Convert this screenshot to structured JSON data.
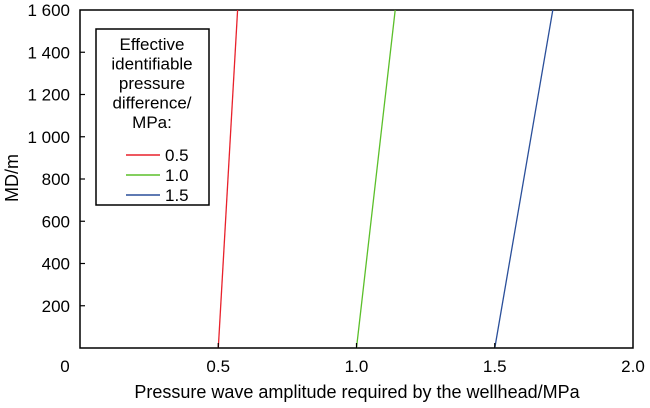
{
  "chart_data": {
    "type": "line",
    "title": "",
    "xlabel": "Pressure wave amplitude required by the wellhead/MPa",
    "ylabel": "MD/m",
    "xlim": [
      0,
      2.0
    ],
    "ylim": [
      0,
      1600
    ],
    "x_ticks": [
      0,
      0.5,
      1.0,
      1.5,
      2.0
    ],
    "x_tick_labels": [
      "0",
      "0.5",
      "1.0",
      "1.5",
      "2.0"
    ],
    "y_ticks": [
      200,
      400,
      600,
      800,
      1000,
      1200,
      1400,
      1600
    ],
    "y_tick_labels": [
      "200",
      "400",
      "600",
      "800",
      "1 000",
      "1 200",
      "1 400",
      "1 600"
    ],
    "grid": false,
    "legend": {
      "title_lines": [
        "Effective",
        "identifiable",
        "pressure",
        "difference/",
        "MPa:"
      ],
      "placement": "top-left"
    },
    "series": [
      {
        "name": "0.5",
        "color": "#e8212b",
        "x": [
          0.5,
          0.57
        ],
        "y": [
          0,
          1600
        ]
      },
      {
        "name": "1.0",
        "color": "#5bbf2a",
        "x": [
          1.0,
          1.14
        ],
        "y": [
          0,
          1600
        ]
      },
      {
        "name": "1.5",
        "color": "#2a4f9a",
        "x": [
          1.5,
          1.71
        ],
        "y": [
          0,
          1600
        ]
      }
    ]
  }
}
